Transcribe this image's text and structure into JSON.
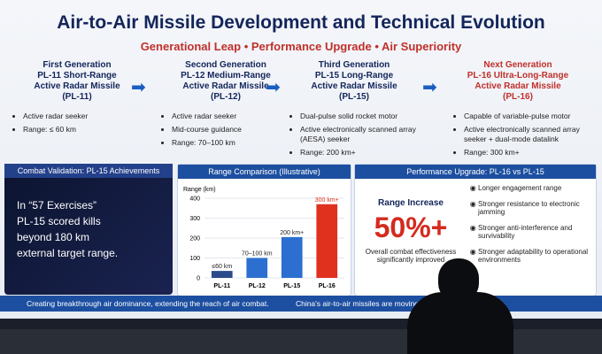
{
  "header": {
    "title": "Air-to-Air Missile Development and Technical Evolution",
    "subtitle": "Generational Leap • Performance Upgrade • Air Superiority"
  },
  "generations": [
    {
      "heading": [
        "First Generation",
        "PL-11 Short-Range",
        "Active Radar Missile",
        "(PL-11)"
      ],
      "bullets": [
        "Active radar seeker",
        "Range: ≤ 60 km"
      ]
    },
    {
      "heading": [
        "Second Generation",
        "PL-12 Medium-Range",
        "Active Radar Missile",
        "(PL-12)"
      ],
      "bullets": [
        "Active radar seeker",
        "Mid-course guidance",
        "Range: 70–100 km"
      ]
    },
    {
      "heading": [
        "Third Generation",
        "PL-15 Long-Range",
        "Active Radar Missile",
        "(PL-15)"
      ],
      "bullets": [
        "Dual-pulse solid rocket motor",
        "Active electronically scanned array (AESA) seeker",
        "Range: 200 km+"
      ]
    },
    {
      "heading": [
        "Next Generation",
        "PL-16 Ultra-Long-Range",
        "Active Radar Missile",
        "(PL-16)"
      ],
      "bullets": [
        "Capable of variable-pulse motor",
        "Active electronically scanned array seeker + dual-mode datalink",
        "Range: 300 km+"
      ]
    }
  ],
  "combat": {
    "title": "Combat Validation: PL-15 Achievements",
    "lines": [
      "In “57 Exercises”",
      "PL-15 scored kills",
      "beyond 180 km",
      "external target range."
    ]
  },
  "chart_data": {
    "type": "bar",
    "title": "Range Comparison (Illustrative)",
    "y_label": "Range (km)",
    "categories": [
      "PL-11",
      "PL-12",
      "PL-15",
      "PL-16"
    ],
    "values": [
      35,
      100,
      205,
      370
    ],
    "annotations": [
      "≤60 km",
      "70–100 km",
      "200 km+",
      "300 km+"
    ],
    "colors": [
      "#2a4a8a",
      "#2c6fd0",
      "#2c6fd0",
      "#e0301e"
    ],
    "ylim": [
      0,
      400
    ],
    "yticks": [
      0,
      100,
      200,
      300,
      400
    ]
  },
  "upgrade": {
    "title": "Performance Upgrade: PL-16 vs PL-15",
    "label": "Range Increase",
    "big": "50%+",
    "note": "Overall combat effectiveness significantly improved",
    "items": [
      "Longer engagement range",
      "Stronger resistance to electronic jamming",
      "Stronger anti-interference and survivability",
      "Stronger adaptability to operational environments"
    ]
  },
  "banner": [
    "Creating breakthrough air dominance, extending the reach of air combat.",
    "China's air-to-air missiles are moving to"
  ]
}
